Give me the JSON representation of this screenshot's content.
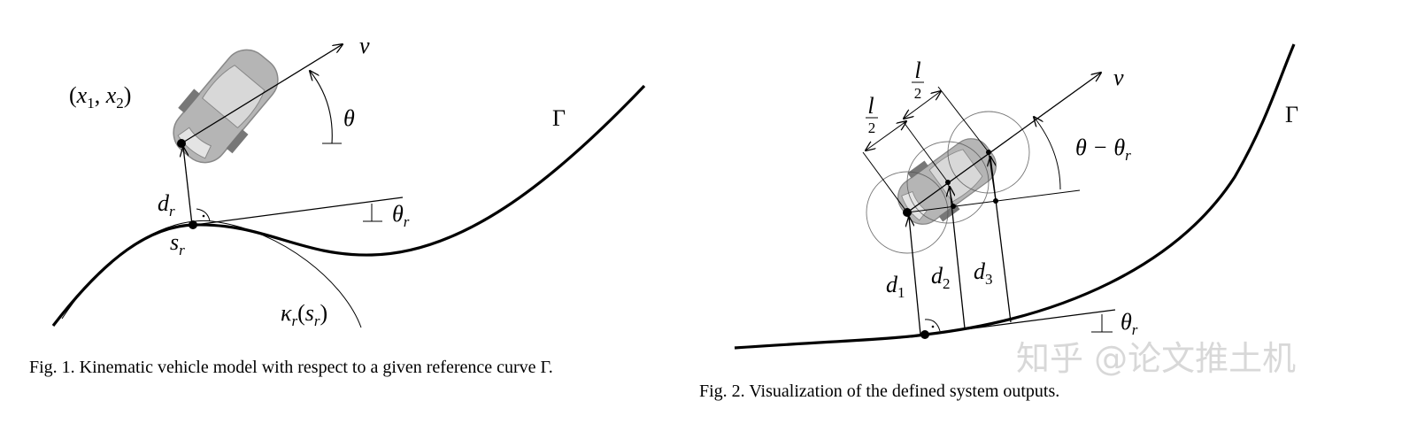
{
  "figure1": {
    "v": "v",
    "position": {
      "open": "(",
      "x": "x",
      "sub1": "1",
      "comma": ", ",
      "x2": "x",
      "sub2": "2",
      "close": ")"
    },
    "theta": "θ",
    "curve": "Γ",
    "dr": {
      "base": "d",
      "sub": "r"
    },
    "thetar": {
      "base": "θ",
      "sub": "r"
    },
    "sr": {
      "base": "s",
      "sub": "r"
    },
    "kappa": {
      "base": "κ",
      "sub": "r",
      "open": "(",
      "arg": "s",
      "argsub": "r",
      "close": ")"
    },
    "caption": "Fig. 1.   Kinematic vehicle model with respect to a given reference curve Γ."
  },
  "figure2": {
    "half1": {
      "num": "l",
      "den": "2"
    },
    "half2": {
      "num": "l",
      "den": "2"
    },
    "v": "v",
    "curve": "Γ",
    "angle": {
      "a": "θ − θ",
      "sub": "r"
    },
    "d1": {
      "base": "d",
      "sub": "1"
    },
    "d2": {
      "base": "d",
      "sub": "2"
    },
    "d3": {
      "base": "d",
      "sub": "3"
    },
    "thetar": {
      "base": "θ",
      "sub": "r"
    },
    "caption": "Fig. 2.   Visualization of the defined system outputs."
  },
  "watermark": "知乎 @论文推土机"
}
